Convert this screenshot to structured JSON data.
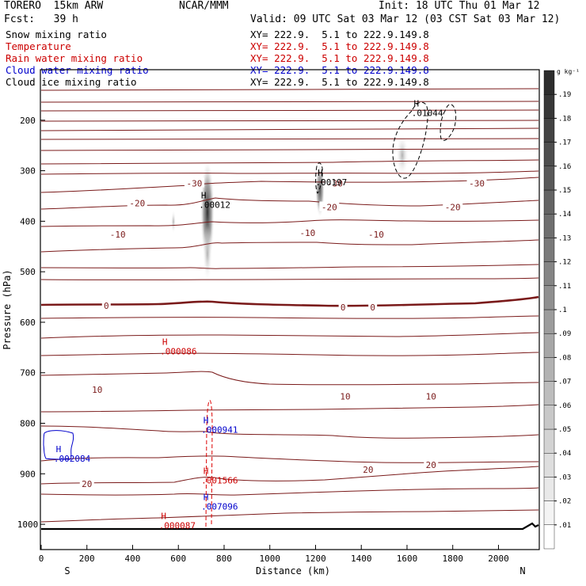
{
  "header": {
    "model": "TORERO  15km ARW",
    "center": "NCAR/MMM",
    "init": "Init: 18 UTC Thu 01 Mar 12",
    "fcst": "Fcst:   39 h",
    "valid": "Valid: 09 UTC Sat 03 Mar 12 (03 CST Sat 03 Mar 12)"
  },
  "fields": [
    {
      "name": "Snow mixing ratio",
      "xy": "XY= 222.9.  5.1 to 222.9.149.8",
      "color": "#000000"
    },
    {
      "name": "Temperature",
      "xy": "XY= 222.9.  5.1 to 222.9.149.8",
      "color": "#cc0000"
    },
    {
      "name": "Rain water mixing ratio",
      "xy": "XY= 222.9.  5.1 to 222.9.149.8",
      "color": "#cc0000"
    },
    {
      "name": "Cloud water mixing ratio",
      "xy": "XY= 222.9.  5.1 to 222.9.149.8",
      "color": "#0000cc"
    },
    {
      "name": "Cloud ice mixing ratio",
      "xy": "XY= 222.9.  5.1 to 222.9.149.8",
      "color": "#000000"
    }
  ],
  "chart_data": {
    "type": "cross-section",
    "xlabel": "Distance (km)",
    "ylabel": "Pressure (hPa)",
    "x_ticks": [
      0,
      200,
      400,
      600,
      800,
      1000,
      1200,
      1400,
      1600,
      1800,
      2000
    ],
    "x_range": [
      0,
      2175
    ],
    "y_ticks": [
      200,
      300,
      400,
      500,
      600,
      700,
      800,
      900,
      1000
    ],
    "y_range": [
      100,
      1050
    ],
    "endpoints": {
      "left": "S",
      "right": "N"
    },
    "colorbar": {
      "unit": "g kg⁻¹",
      "ticks": [
        ".01",
        ".02",
        ".03",
        ".04",
        ".05",
        ".06",
        ".07",
        ".08",
        ".09",
        ".1",
        ".11",
        ".12",
        ".13",
        ".14",
        ".15",
        ".16",
        ".17",
        ".18",
        ".19"
      ]
    },
    "temperature_labels": [
      {
        "text": "-30",
        "x": 670,
        "p": 325
      },
      {
        "text": "-30",
        "x": 1285,
        "p": 325
      },
      {
        "text": "-30",
        "x": 1905,
        "p": 325
      },
      {
        "text": "-20",
        "x": 420,
        "p": 364
      },
      {
        "text": "-20",
        "x": 1260,
        "p": 372
      },
      {
        "text": "-20",
        "x": 1800,
        "p": 372
      },
      {
        "text": "-10",
        "x": 335,
        "p": 426
      },
      {
        "text": "-10",
        "x": 1165,
        "p": 423
      },
      {
        "text": "-10",
        "x": 1465,
        "p": 426
      },
      {
        "text": "0",
        "x": 285,
        "p": 567
      },
      {
        "text": "0",
        "x": 1320,
        "p": 570
      },
      {
        "text": "0",
        "x": 1450,
        "p": 570
      },
      {
        "text": "10",
        "x": 245,
        "p": 733
      },
      {
        "text": "10",
        "x": 1330,
        "p": 747
      },
      {
        "text": "10",
        "x": 1705,
        "p": 747
      },
      {
        "text": "20",
        "x": 200,
        "p": 920
      },
      {
        "text": "20",
        "x": 1430,
        "p": 892
      },
      {
        "text": "20",
        "x": 1705,
        "p": 882
      }
    ],
    "maxima": [
      {
        "label": "H",
        "value": ".00012",
        "x": 690,
        "p": 355,
        "color": "#000000"
      },
      {
        "label": "H",
        "value": ".00197",
        "x": 1200,
        "p": 310,
        "color": "#000000"
      },
      {
        "label": "H",
        "value": ".01044",
        "x": 1620,
        "p": 173,
        "color": "#000000"
      },
      {
        "label": "H",
        "value": ".000086",
        "x": 520,
        "p": 645,
        "color": "#cc0000"
      },
      {
        "label": "H",
        "value": ".000941",
        "x": 700,
        "p": 800,
        "color": "#0000cc"
      },
      {
        "label": "H",
        "value": ".002084",
        "x": 55,
        "p": 857,
        "color": "#0000cc"
      },
      {
        "label": "H",
        "value": ".001566",
        "x": 700,
        "p": 900,
        "color": "#cc0000"
      },
      {
        "label": "H",
        "value": ".007096",
        "x": 700,
        "p": 952,
        "color": "#0000cc"
      },
      {
        "label": "H",
        "value": ".000087",
        "x": 515,
        "p": 990,
        "color": "#cc0000"
      }
    ]
  }
}
